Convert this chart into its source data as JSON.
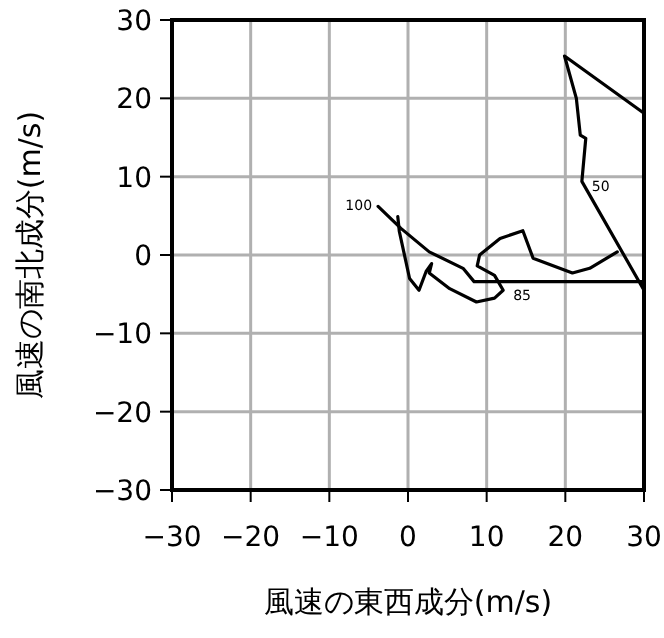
{
  "chart_data": {
    "type": "line",
    "xlabel": "風速の東西成分(m/s)",
    "ylabel": "風速の南北成分(m/s)",
    "xlim": [
      -30,
      30
    ],
    "ylim": [
      -30,
      30
    ],
    "xticks": [
      -30,
      -20,
      -10,
      0,
      10,
      20,
      30
    ],
    "yticks": [
      -30,
      -20,
      -10,
      0,
      10,
      20,
      30
    ],
    "grid": true,
    "series": [
      {
        "color": "#000000",
        "x": [
          -3.8,
          -0.9,
          2.7,
          7.0,
          8.4,
          30.0,
          30.0,
          22.1,
          22.6,
          21.9,
          21.4,
          19.9,
          30.0
        ],
        "values": [
          6.2,
          3.4,
          0.4,
          -1.7,
          -3.4,
          -3.4,
          -4.5,
          9.4,
          14.9,
          15.3,
          20.0,
          25.4,
          18.1
        ]
      },
      {
        "color": "#000000",
        "x": [
          26.6,
          23.1,
          20.9,
          15.9,
          14.6,
          11.7,
          9.1,
          8.8,
          11.0,
          12.1,
          11.0,
          8.7,
          5.3,
          2.7,
          3.0,
          2.3,
          1.4,
          0.2,
          -1.1,
          -1.3
        ],
        "values": [
          0.4,
          -1.7,
          -2.3,
          -0.4,
          3.1,
          2.1,
          0.0,
          -1.4,
          -2.6,
          -4.5,
          -5.5,
          -6.0,
          -4.3,
          -2.3,
          -1.1,
          -2.1,
          -4.5,
          -3.0,
          3.0,
          4.9
        ]
      }
    ],
    "annotations": [
      {
        "text": "100",
        "x": -3.8,
        "y": 6.2
      },
      {
        "text": "50",
        "x": 22.1,
        "y": 9.4
      },
      {
        "text": "85",
        "x": 12.1,
        "y": -4.5
      }
    ]
  }
}
